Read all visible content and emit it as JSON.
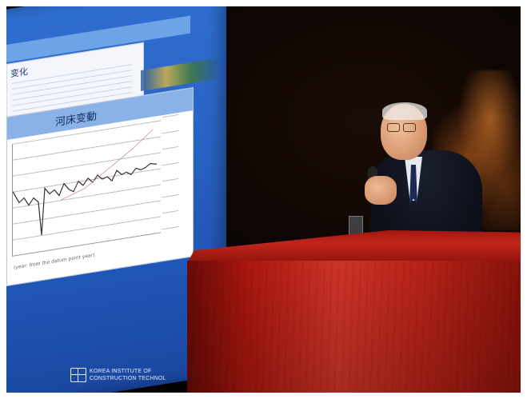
{
  "scene": {
    "type": "photo",
    "background_color": "#070302",
    "screen_color": "#2a63c3",
    "podium_color": "#c0261b"
  },
  "slide": {
    "back_title": "变化",
    "front_title": "河床变動",
    "x_axis_label": "(year: from the datum point year)"
  },
  "logo": {
    "line1": "KOREA INSTITUTE OF",
    "line2": "CONSTRUCTION TECHNOL",
    "icon": "building-grid-icon"
  }
}
